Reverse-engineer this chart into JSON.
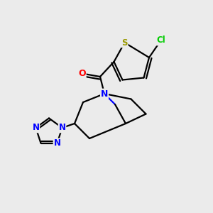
{
  "bg_color": "#ebebeb",
  "atom_colors": {
    "C": "#000000",
    "N": "#0000ff",
    "O": "#ff0000",
    "S": "#999900",
    "Cl": "#00cc00"
  },
  "bond_color": "#000000",
  "bond_width": 1.6,
  "figsize": [
    3.0,
    3.0
  ],
  "dpi": 100
}
